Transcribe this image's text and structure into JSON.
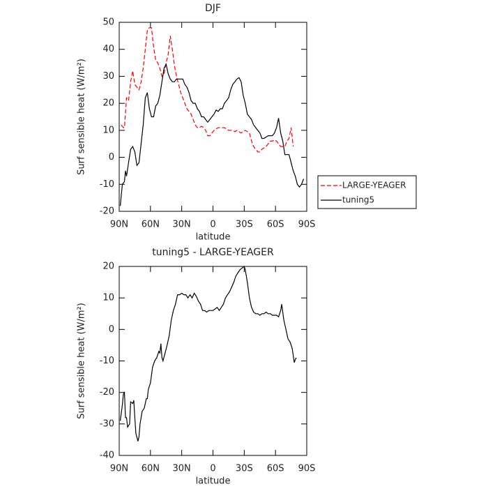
{
  "chart_data": [
    {
      "type": "line",
      "title": "DJF",
      "xlabel": "latitude",
      "ylabel": "Surf sensible heat (W/m²)",
      "xlim": [
        90,
        -90
      ],
      "xticks": [
        {
          "value": 90,
          "label": "90N"
        },
        {
          "value": 60,
          "label": "60N"
        },
        {
          "value": 30,
          "label": "30N"
        },
        0,
        {
          "value": -30,
          "label": "30S"
        },
        {
          "value": -60,
          "label": "60S"
        },
        {
          "value": -90,
          "label": "90S"
        }
      ],
      "ylim": [
        -20,
        50
      ],
      "yticks": [
        -20,
        -10,
        0,
        10,
        20,
        30,
        40,
        50
      ],
      "legend": "right",
      "series": [
        {
          "name": "LARGE-YEAGER",
          "color": "#ff0000",
          "style": "dashed",
          "x": [
            88,
            86,
            85,
            83,
            81,
            79,
            77,
            75,
            73,
            71,
            69,
            67,
            65,
            63,
            61,
            59,
            57,
            55,
            53,
            51,
            49,
            47,
            45,
            43,
            41,
            39,
            37,
            35,
            33,
            31,
            29,
            27,
            25,
            23,
            21,
            19,
            17,
            15,
            13,
            11,
            9,
            7,
            5,
            3,
            1,
            -1,
            -3,
            -5,
            -7,
            -9,
            -11,
            -13,
            -15,
            -17,
            -19,
            -21,
            -23,
            -25,
            -27,
            -29,
            -31,
            -33,
            -35,
            -37,
            -39,
            -41,
            -43,
            -45,
            -47,
            -49,
            -51,
            -53,
            -55,
            -57,
            -59,
            -61,
            -63,
            -65,
            -67,
            -69,
            -71,
            -73,
            -75,
            -77
          ],
          "values": [
            12,
            11,
            11,
            22,
            21,
            28,
            32,
            27,
            26,
            25,
            28,
            33,
            40,
            47,
            48,
            48,
            41,
            36,
            35,
            33,
            30,
            31,
            35,
            38,
            45,
            40,
            34,
            30,
            27,
            24,
            22,
            20,
            18,
            17,
            16,
            14,
            12,
            11,
            11,
            11.5,
            11,
            10,
            8,
            8,
            9,
            10,
            10.5,
            11,
            11,
            11,
            11,
            10.5,
            10,
            10,
            10,
            9.5,
            10,
            9.5,
            9,
            9.5,
            10,
            9.5,
            9,
            6,
            4,
            3,
            2,
            2,
            3,
            3.5,
            4,
            5,
            6,
            6,
            6.5,
            6,
            5,
            4,
            4,
            4,
            6,
            7,
            11,
            4
          ]
        },
        {
          "name": "tuning5",
          "color": "#000000",
          "style": "solid",
          "x": [
            89,
            87,
            85,
            84,
            83,
            81,
            79,
            77,
            75,
            73,
            71,
            69,
            67,
            65,
            63,
            61,
            59,
            57,
            55,
            53,
            51,
            49,
            47,
            45,
            43,
            41,
            39,
            37,
            35,
            33,
            31,
            29,
            27,
            25,
            23,
            21,
            19,
            17,
            15,
            13,
            11,
            9,
            7,
            5,
            3,
            1,
            -1,
            -3,
            -5,
            -7,
            -9,
            -11,
            -13,
            -15,
            -17,
            -19,
            -21,
            -23,
            -25,
            -27,
            -29,
            -31,
            -33,
            -35,
            -37,
            -39,
            -41,
            -43,
            -45,
            -47,
            -49,
            -51,
            -53,
            -55,
            -57,
            -59,
            -61,
            -63,
            -65,
            -67,
            -69,
            -71,
            -73,
            -75,
            -77,
            -79,
            -81,
            -83,
            -85,
            -87
          ],
          "values": [
            -18,
            -10,
            -9,
            -5,
            -7,
            -2,
            3,
            4,
            2,
            -3,
            -2,
            5,
            12,
            22,
            24,
            18,
            15,
            15,
            19,
            20,
            23,
            28,
            33,
            34.5,
            31,
            29,
            28,
            28,
            29,
            29,
            29,
            29,
            27,
            26,
            24,
            21,
            20,
            20,
            18,
            17,
            15,
            15,
            14,
            13,
            14,
            15,
            16,
            17.5,
            17,
            18,
            18,
            20,
            21,
            22,
            25,
            27,
            28,
            29,
            29.5,
            28,
            23,
            20,
            16,
            15,
            14,
            12,
            11,
            10,
            9,
            7,
            7,
            7.5,
            8,
            8,
            8,
            9,
            11,
            14.5,
            9,
            6,
            1,
            1,
            1,
            -2,
            -5,
            -7,
            -10,
            -11,
            -10,
            -8
          ]
        }
      ]
    },
    {
      "type": "line",
      "title": "tuning5 - LARGE-YEAGER",
      "xlabel": "latitude",
      "ylabel": "Surf sensible heat (W/m²)",
      "xlim": [
        90,
        -90
      ],
      "xticks": [
        {
          "value": 90,
          "label": "90N"
        },
        {
          "value": 60,
          "label": "60N"
        },
        {
          "value": 30,
          "label": "30N"
        },
        0,
        {
          "value": -30,
          "label": "30S"
        },
        {
          "value": -60,
          "label": "60S"
        },
        {
          "value": -90,
          "label": "90S"
        }
      ],
      "ylim": [
        -40,
        20
      ],
      "yticks": [
        -40,
        -30,
        -20,
        -10,
        0,
        10,
        20
      ],
      "color": "#000000",
      "x": [
        89,
        87,
        86,
        85,
        84,
        83,
        82,
        80,
        79,
        77,
        76,
        75,
        74,
        72,
        71,
        70,
        68,
        66,
        64,
        63,
        62,
        60,
        58,
        56,
        54,
        52,
        51,
        50,
        49,
        48,
        46,
        44,
        42,
        40,
        38,
        36,
        34,
        32,
        30,
        28,
        26,
        24,
        22,
        20,
        18,
        16,
        14,
        12,
        10,
        8,
        6,
        4,
        2,
        0,
        -2,
        -4,
        -6,
        -8,
        -10,
        -12,
        -14,
        -16,
        -18,
        -20,
        -22,
        -24,
        -26,
        -28,
        -30,
        -31,
        -33,
        -35,
        -37,
        -39,
        -41,
        -43,
        -45,
        -47,
        -49,
        -51,
        -53,
        -55,
        -57,
        -59,
        -61,
        -63,
        -65,
        -66,
        -68,
        -70,
        -72,
        -74,
        -76,
        -78,
        -79,
        -80
      ],
      "values": [
        -29,
        -24,
        -20.5,
        -20,
        -28,
        -28,
        -31,
        -30,
        -23,
        -23.5,
        -22.5,
        -28,
        -33,
        -35.5,
        -34,
        -30,
        -26,
        -25,
        -22,
        -22,
        -19,
        -17,
        -12,
        -10,
        -9,
        -7,
        -7.5,
        -4.5,
        -9,
        -10,
        -7.5,
        -5,
        -2,
        3,
        6,
        8,
        11,
        11,
        11.5,
        11,
        11,
        10,
        11,
        10,
        11.5,
        10.5,
        9,
        8,
        6,
        6,
        5.5,
        6,
        6,
        6,
        6.5,
        7,
        6,
        7,
        8,
        10,
        11,
        12,
        13.5,
        15,
        17,
        18,
        19,
        19.5,
        20,
        19,
        15,
        10,
        7,
        5.5,
        5,
        5,
        4.5,
        5,
        5,
        5.5,
        5,
        5,
        4.5,
        4.5,
        4.5,
        4,
        6,
        8,
        3,
        0,
        -3,
        -4,
        -6,
        -10.5,
        -9.5,
        -9
      ]
    }
  ]
}
